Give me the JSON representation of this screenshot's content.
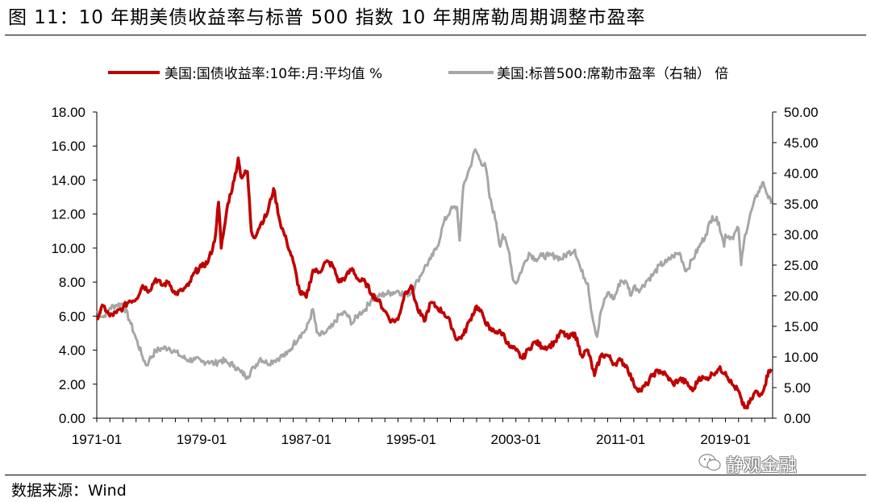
{
  "title": "图 11：10 年期美债收益率与标普 500 指数 10 年期席勒周期调整市盈率",
  "source": "数据来源：Wind",
  "watermark": "静观金融",
  "chart_data": {
    "type": "line",
    "legend_position": "top",
    "grid": false,
    "x_ticks": [
      "1971-01",
      "1979-01",
      "1987-01",
      "1995-01",
      "2003-01",
      "2011-01",
      "2019-01"
    ],
    "y_left": {
      "min": 0,
      "max": 18,
      "ticks": [
        "0.00",
        "2.00",
        "4.00",
        "6.00",
        "8.00",
        "10.00",
        "12.00",
        "14.00",
        "16.00",
        "18.00"
      ]
    },
    "y_right": {
      "min": 0,
      "max": 50,
      "ticks": [
        "0.00",
        "5.00",
        "10.00",
        "15.00",
        "20.00",
        "25.00",
        "30.00",
        "35.00",
        "40.00",
        "45.00",
        "50.00"
      ]
    },
    "series": [
      {
        "name": "美国:国债收益率:10年:月:平均值 %",
        "axis": "left",
        "color": "#c00000",
        "points": [
          [
            1971.0,
            5.9
          ],
          [
            1971.5,
            6.6
          ],
          [
            1972.0,
            6.0
          ],
          [
            1972.5,
            6.2
          ],
          [
            1973.0,
            6.5
          ],
          [
            1973.5,
            6.9
          ],
          [
            1974.0,
            7.0
          ],
          [
            1974.5,
            7.8
          ],
          [
            1975.0,
            7.5
          ],
          [
            1975.5,
            8.2
          ],
          [
            1976.0,
            7.8
          ],
          [
            1976.5,
            8.0
          ],
          [
            1977.0,
            7.3
          ],
          [
            1977.5,
            7.5
          ],
          [
            1978.0,
            7.8
          ],
          [
            1978.5,
            8.6
          ],
          [
            1979.0,
            8.9
          ],
          [
            1979.5,
            9.2
          ],
          [
            1980.0,
            10.4
          ],
          [
            1980.3,
            12.7
          ],
          [
            1980.5,
            10.0
          ],
          [
            1980.8,
            11.5
          ],
          [
            1981.0,
            12.6
          ],
          [
            1981.5,
            14.0
          ],
          [
            1981.8,
            15.3
          ],
          [
            1982.0,
            14.2
          ],
          [
            1982.5,
            14.5
          ],
          [
            1982.8,
            11.0
          ],
          [
            1983.0,
            10.6
          ],
          [
            1983.5,
            11.4
          ],
          [
            1984.0,
            12.0
          ],
          [
            1984.5,
            13.5
          ],
          [
            1985.0,
            11.5
          ],
          [
            1985.5,
            10.4
          ],
          [
            1986.0,
            9.2
          ],
          [
            1986.5,
            7.4
          ],
          [
            1987.0,
            7.1
          ],
          [
            1987.5,
            8.7
          ],
          [
            1988.0,
            8.6
          ],
          [
            1988.5,
            9.2
          ],
          [
            1989.0,
            9.0
          ],
          [
            1989.5,
            8.0
          ],
          [
            1990.0,
            8.3
          ],
          [
            1990.5,
            8.8
          ],
          [
            1991.0,
            8.1
          ],
          [
            1991.5,
            8.0
          ],
          [
            1992.0,
            7.3
          ],
          [
            1992.5,
            6.9
          ],
          [
            1993.0,
            6.3
          ],
          [
            1993.5,
            5.7
          ],
          [
            1994.0,
            5.8
          ],
          [
            1994.5,
            7.3
          ],
          [
            1995.0,
            7.8
          ],
          [
            1995.5,
            6.4
          ],
          [
            1996.0,
            5.7
          ],
          [
            1996.5,
            6.8
          ],
          [
            1997.0,
            6.5
          ],
          [
            1997.5,
            6.2
          ],
          [
            1998.0,
            5.6
          ],
          [
            1998.5,
            4.6
          ],
          [
            1999.0,
            4.9
          ],
          [
            1999.5,
            5.8
          ],
          [
            2000.0,
            6.6
          ],
          [
            2000.5,
            6.0
          ],
          [
            2001.0,
            5.2
          ],
          [
            2001.5,
            5.1
          ],
          [
            2002.0,
            5.0
          ],
          [
            2002.5,
            4.2
          ],
          [
            2003.0,
            4.0
          ],
          [
            2003.5,
            3.5
          ],
          [
            2004.0,
            4.1
          ],
          [
            2004.5,
            4.5
          ],
          [
            2005.0,
            4.2
          ],
          [
            2005.5,
            4.2
          ],
          [
            2006.0,
            4.5
          ],
          [
            2006.5,
            5.1
          ],
          [
            2007.0,
            4.7
          ],
          [
            2007.5,
            5.0
          ],
          [
            2008.0,
            3.7
          ],
          [
            2008.5,
            4.0
          ],
          [
            2009.0,
            2.5
          ],
          [
            2009.5,
            3.7
          ],
          [
            2010.0,
            3.7
          ],
          [
            2010.5,
            3.2
          ],
          [
            2011.0,
            3.4
          ],
          [
            2011.5,
            3.0
          ],
          [
            2012.0,
            2.0
          ],
          [
            2012.5,
            1.6
          ],
          [
            2013.0,
            2.0
          ],
          [
            2013.5,
            2.6
          ],
          [
            2014.0,
            2.8
          ],
          [
            2014.5,
            2.5
          ],
          [
            2015.0,
            2.0
          ],
          [
            2015.5,
            2.3
          ],
          [
            2016.0,
            2.1
          ],
          [
            2016.5,
            1.6
          ],
          [
            2017.0,
            2.4
          ],
          [
            2017.5,
            2.3
          ],
          [
            2018.0,
            2.6
          ],
          [
            2018.5,
            2.9
          ],
          [
            2019.0,
            2.7
          ],
          [
            2019.5,
            2.0
          ],
          [
            2020.0,
            1.6
          ],
          [
            2020.3,
            0.8
          ],
          [
            2020.6,
            0.6
          ],
          [
            2021.0,
            1.1
          ],
          [
            2021.3,
            1.6
          ],
          [
            2021.6,
            1.3
          ],
          [
            2022.0,
            1.9
          ],
          [
            2022.3,
            2.8
          ],
          [
            2022.5,
            2.9
          ]
        ]
      },
      {
        "name": "美国:标普500:席勒市盈率（右轴） 倍",
        "axis": "right",
        "color": "#a6a6a6",
        "points": [
          [
            1971.0,
            17.5
          ],
          [
            1971.5,
            16.5
          ],
          [
            1972.0,
            18.0
          ],
          [
            1972.5,
            18.5
          ],
          [
            1973.0,
            18.7
          ],
          [
            1973.5,
            16.0
          ],
          [
            1974.0,
            13.0
          ],
          [
            1974.5,
            10.0
          ],
          [
            1974.8,
            8.6
          ],
          [
            1975.0,
            9.5
          ],
          [
            1975.5,
            11.0
          ],
          [
            1976.0,
            11.4
          ],
          [
            1976.5,
            11.5
          ],
          [
            1977.0,
            10.8
          ],
          [
            1977.5,
            10.0
          ],
          [
            1978.0,
            9.5
          ],
          [
            1978.5,
            9.6
          ],
          [
            1979.0,
            9.2
          ],
          [
            1979.5,
            9.3
          ],
          [
            1980.0,
            8.9
          ],
          [
            1980.5,
            9.5
          ],
          [
            1981.0,
            9.0
          ],
          [
            1981.5,
            8.6
          ],
          [
            1982.0,
            7.5
          ],
          [
            1982.5,
            6.8
          ],
          [
            1983.0,
            8.3
          ],
          [
            1983.5,
            9.8
          ],
          [
            1984.0,
            9.0
          ],
          [
            1984.5,
            9.4
          ],
          [
            1985.0,
            10.0
          ],
          [
            1985.5,
            10.4
          ],
          [
            1986.0,
            12.0
          ],
          [
            1986.5,
            13.5
          ],
          [
            1987.0,
            14.5
          ],
          [
            1987.5,
            17.8
          ],
          [
            1987.8,
            14.0
          ],
          [
            1988.0,
            13.5
          ],
          [
            1988.5,
            14.0
          ],
          [
            1989.0,
            15.0
          ],
          [
            1989.5,
            16.8
          ],
          [
            1990.0,
            17.2
          ],
          [
            1990.5,
            15.5
          ],
          [
            1991.0,
            17.0
          ],
          [
            1991.5,
            17.8
          ],
          [
            1992.0,
            19.5
          ],
          [
            1992.5,
            19.8
          ],
          [
            1993.0,
            20.3
          ],
          [
            1993.5,
            20.5
          ],
          [
            1994.0,
            20.8
          ],
          [
            1994.5,
            20.2
          ],
          [
            1995.0,
            20.5
          ],
          [
            1995.5,
            22.5
          ],
          [
            1996.0,
            24.5
          ],
          [
            1996.5,
            26.0
          ],
          [
            1997.0,
            28.0
          ],
          [
            1997.5,
            32.0
          ],
          [
            1998.0,
            34.0
          ],
          [
            1998.5,
            34.5
          ],
          [
            1998.7,
            29.0
          ],
          [
            1999.0,
            38.0
          ],
          [
            1999.5,
            41.0
          ],
          [
            1999.9,
            43.9
          ],
          [
            2000.3,
            42.0
          ],
          [
            2000.7,
            41.0
          ],
          [
            2001.0,
            36.0
          ],
          [
            2001.5,
            32.0
          ],
          [
            2001.8,
            28.0
          ],
          [
            2002.0,
            30.0
          ],
          [
            2002.5,
            27.0
          ],
          [
            2002.8,
            22.5
          ],
          [
            2003.0,
            22.0
          ],
          [
            2003.5,
            24.5
          ],
          [
            2004.0,
            27.0
          ],
          [
            2004.5,
            26.0
          ],
          [
            2005.0,
            26.5
          ],
          [
            2005.5,
            26.5
          ],
          [
            2006.0,
            26.5
          ],
          [
            2006.5,
            26.0
          ],
          [
            2007.0,
            27.0
          ],
          [
            2007.5,
            27.5
          ],
          [
            2008.0,
            24.0
          ],
          [
            2008.5,
            22.0
          ],
          [
            2008.8,
            17.0
          ],
          [
            2009.0,
            15.0
          ],
          [
            2009.2,
            13.3
          ],
          [
            2009.5,
            17.5
          ],
          [
            2010.0,
            20.5
          ],
          [
            2010.5,
            19.5
          ],
          [
            2011.0,
            22.5
          ],
          [
            2011.5,
            22.0
          ],
          [
            2011.8,
            20.0
          ],
          [
            2012.0,
            21.5
          ],
          [
            2012.5,
            21.0
          ],
          [
            2013.0,
            22.5
          ],
          [
            2013.5,
            23.5
          ],
          [
            2014.0,
            25.0
          ],
          [
            2014.5,
            25.5
          ],
          [
            2015.0,
            26.5
          ],
          [
            2015.5,
            27.0
          ],
          [
            2016.0,
            24.0
          ],
          [
            2016.5,
            26.0
          ],
          [
            2017.0,
            28.0
          ],
          [
            2017.5,
            30.0
          ],
          [
            2018.0,
            33.0
          ],
          [
            2018.5,
            32.0
          ],
          [
            2018.9,
            28.0
          ],
          [
            2019.0,
            30.0
          ],
          [
            2019.5,
            29.5
          ],
          [
            2020.0,
            31.0
          ],
          [
            2020.2,
            25.0
          ],
          [
            2020.5,
            30.0
          ],
          [
            2021.0,
            34.0
          ],
          [
            2021.5,
            37.0
          ],
          [
            2021.9,
            38.5
          ],
          [
            2022.2,
            36.5
          ],
          [
            2022.5,
            35.0
          ]
        ]
      }
    ]
  }
}
